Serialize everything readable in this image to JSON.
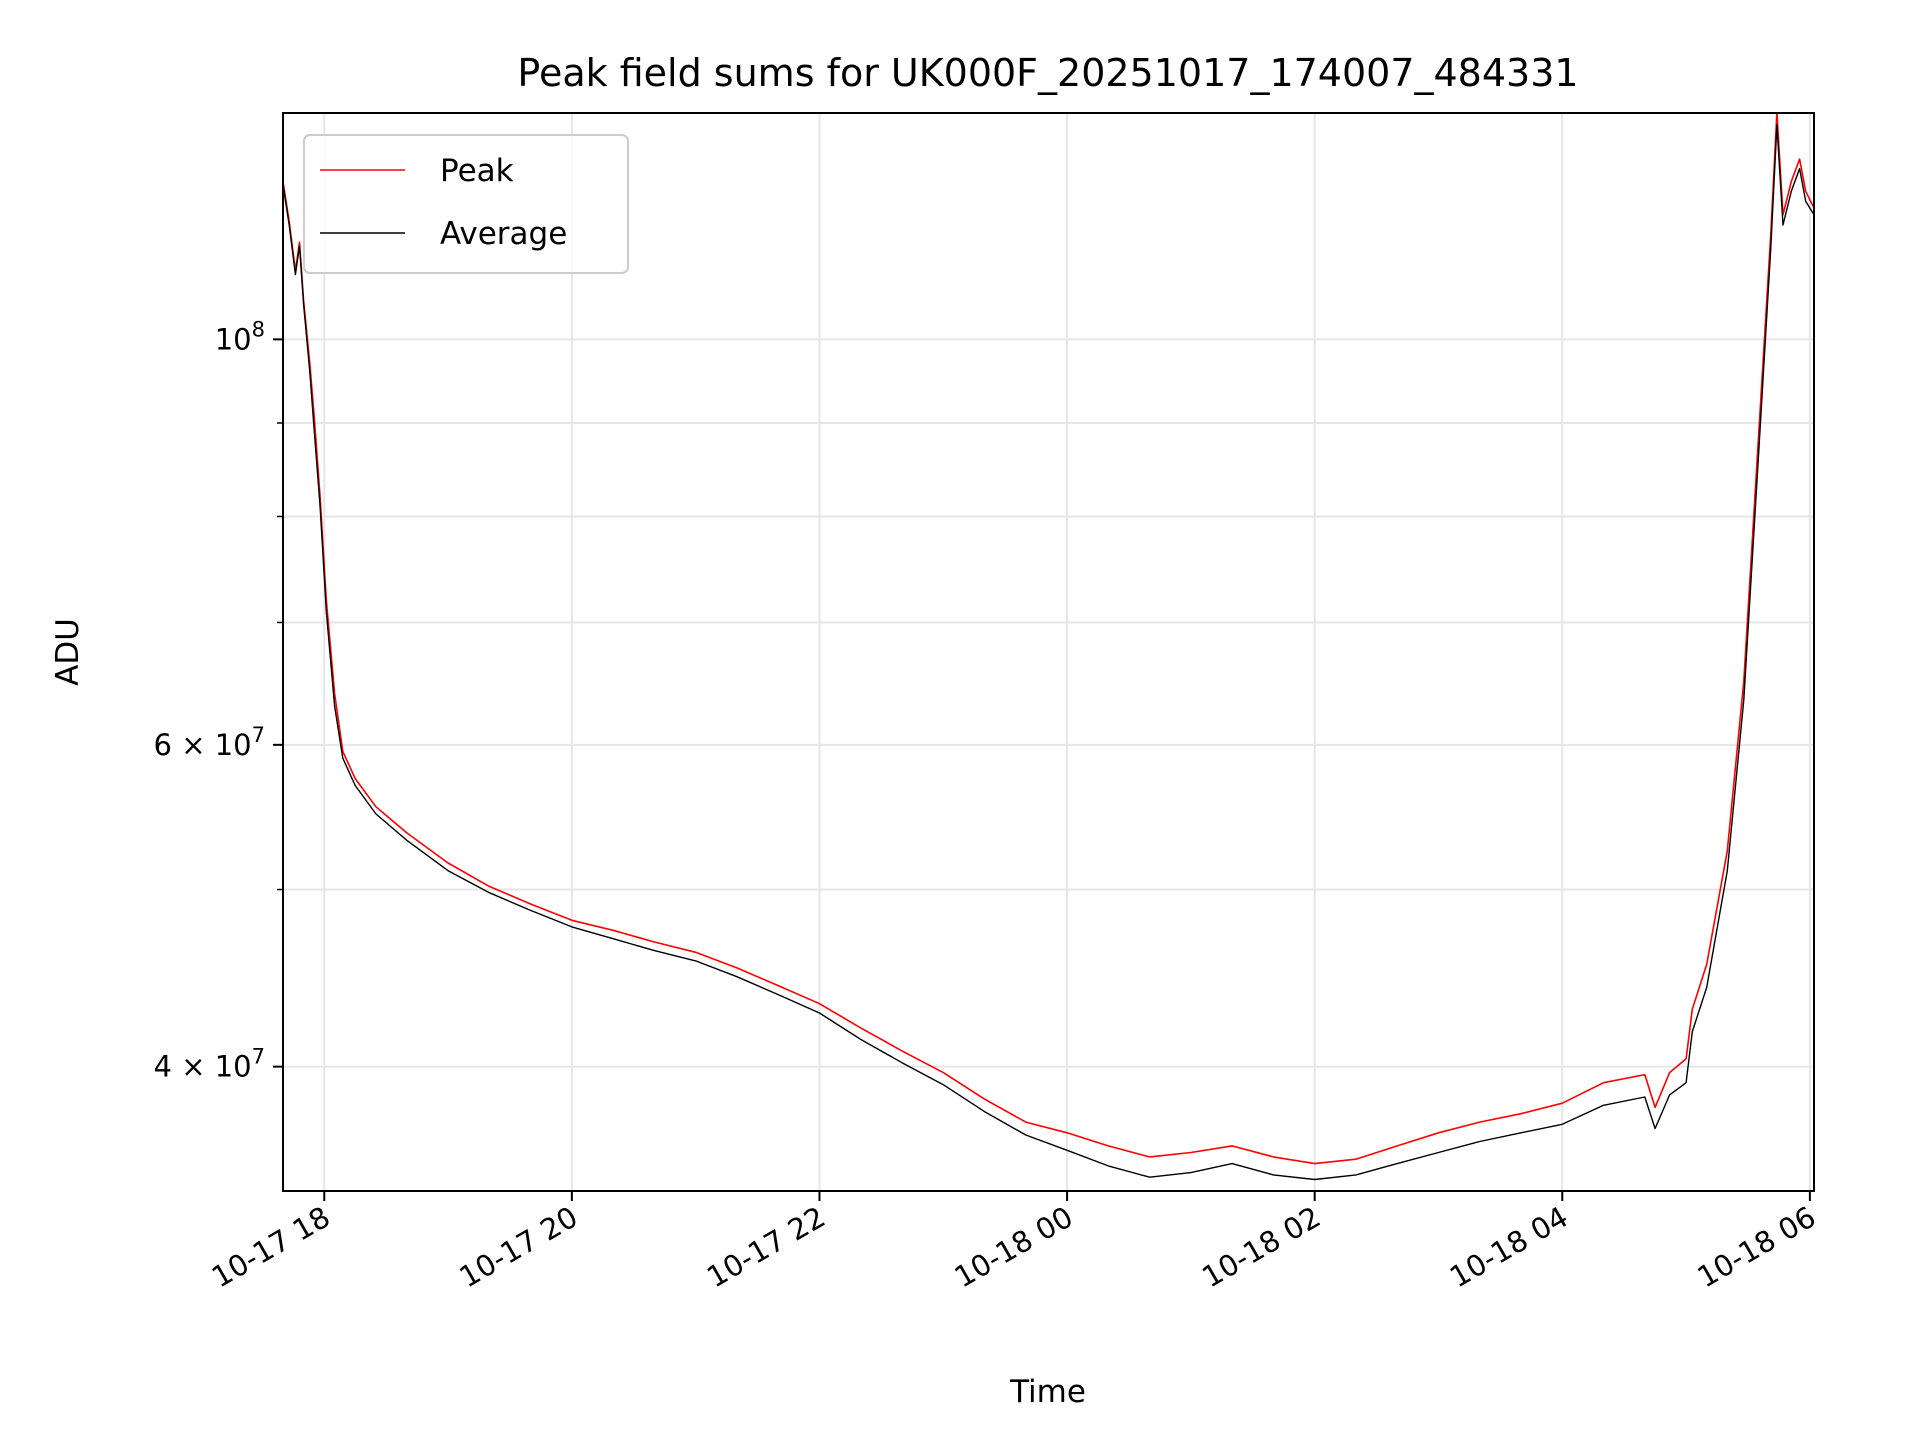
{
  "chart_data": {
    "type": "line",
    "title": "Peak field sums for UK000F_20251017_174007_484331",
    "xlabel": "Time",
    "ylabel": "ADU",
    "x_scale": "time",
    "y_scale": "log",
    "xlim": [
      "2025-10-17T17:40",
      "2025-10-18T06:02"
    ],
    "ylim": [
      34200000,
      133000000
    ],
    "grid": true,
    "legend": {
      "placement": "top-left"
    },
    "x_ticks": [
      {
        "t": "2025-10-17T18:00",
        "label": "10-17 18"
      },
      {
        "t": "2025-10-17T20:00",
        "label": "10-17 20"
      },
      {
        "t": "2025-10-17T22:00",
        "label": "10-17 22"
      },
      {
        "t": "2025-10-18T00:00",
        "label": "10-18 00"
      },
      {
        "t": "2025-10-18T02:00",
        "label": "10-18 02"
      },
      {
        "t": "2025-10-18T04:00",
        "label": "10-18 04"
      },
      {
        "t": "2025-10-18T06:00",
        "label": "10-18 06"
      }
    ],
    "y_ticks_major": [
      {
        "value": 100000000,
        "base": "10",
        "exp": "8",
        "mantissa": ""
      },
      {
        "value": 60000000,
        "base": "10",
        "exp": "7",
        "mantissa": "6"
      },
      {
        "value": 40000000,
        "base": "10",
        "exp": "7",
        "mantissa": "4"
      }
    ],
    "y_ticks_minor": [
      90000000,
      80000000,
      70000000,
      50000000
    ],
    "series": [
      {
        "name": "Peak",
        "color": "#ff0000",
        "points": [
          [
            "2025-10-17T17:40",
            122000000
          ],
          [
            "2025-10-17T17:43",
            116000000
          ],
          [
            "2025-10-17T17:46",
            109000000
          ],
          [
            "2025-10-17T17:48",
            113000000
          ],
          [
            "2025-10-17T17:50",
            105000000
          ],
          [
            "2025-10-17T17:53",
            97000000
          ],
          [
            "2025-10-17T17:55",
            91000000
          ],
          [
            "2025-10-17T17:58",
            82000000
          ],
          [
            "2025-10-17T18:01",
            72000000
          ],
          [
            "2025-10-17T18:05",
            64000000
          ],
          [
            "2025-10-17T18:09",
            59500000
          ],
          [
            "2025-10-17T18:15",
            57500000
          ],
          [
            "2025-10-17T18:25",
            55500000
          ],
          [
            "2025-10-17T18:40",
            53700000
          ],
          [
            "2025-10-17T19:00",
            51700000
          ],
          [
            "2025-10-17T19:20",
            50200000
          ],
          [
            "2025-10-17T19:40",
            49100000
          ],
          [
            "2025-10-17T20:00",
            48100000
          ],
          [
            "2025-10-17T20:20",
            47500000
          ],
          [
            "2025-10-17T20:40",
            46800000
          ],
          [
            "2025-10-17T21:00",
            46200000
          ],
          [
            "2025-10-17T21:20",
            45300000
          ],
          [
            "2025-10-17T21:40",
            44300000
          ],
          [
            "2025-10-17T22:00",
            43300000
          ],
          [
            "2025-10-17T22:20",
            42000000
          ],
          [
            "2025-10-17T22:40",
            40800000
          ],
          [
            "2025-10-17T23:00",
            39700000
          ],
          [
            "2025-10-17T23:20",
            38400000
          ],
          [
            "2025-10-17T23:40",
            37300000
          ],
          [
            "2025-10-18T00:00",
            36800000
          ],
          [
            "2025-10-18T00:20",
            36200000
          ],
          [
            "2025-10-18T00:40",
            35700000
          ],
          [
            "2025-10-18T01:00",
            35900000
          ],
          [
            "2025-10-18T01:20",
            36200000
          ],
          [
            "2025-10-18T01:40",
            35700000
          ],
          [
            "2025-10-18T02:00",
            35400000
          ],
          [
            "2025-10-18T02:20",
            35600000
          ],
          [
            "2025-10-18T02:40",
            36200000
          ],
          [
            "2025-10-18T03:00",
            36800000
          ],
          [
            "2025-10-18T03:20",
            37300000
          ],
          [
            "2025-10-18T03:40",
            37700000
          ],
          [
            "2025-10-18T04:00",
            38200000
          ],
          [
            "2025-10-18T04:20",
            39200000
          ],
          [
            "2025-10-18T04:40",
            39600000
          ],
          [
            "2025-10-18T04:45",
            38000000
          ],
          [
            "2025-10-18T04:52",
            39700000
          ],
          [
            "2025-10-18T05:00",
            40400000
          ],
          [
            "2025-10-18T05:03",
            43000000
          ],
          [
            "2025-10-18T05:10",
            45500000
          ],
          [
            "2025-10-18T05:20",
            52500000
          ],
          [
            "2025-10-18T05:28",
            65000000
          ],
          [
            "2025-10-18T05:35",
            88000000
          ],
          [
            "2025-10-18T05:41",
            114000000
          ],
          [
            "2025-10-18T05:44",
            133000000
          ],
          [
            "2025-10-18T05:47",
            117000000
          ],
          [
            "2025-10-18T05:51",
            122000000
          ],
          [
            "2025-10-18T05:55",
            125500000
          ],
          [
            "2025-10-18T05:58",
            120500000
          ],
          [
            "2025-10-18T06:02",
            118000000
          ]
        ]
      },
      {
        "name": "Average",
        "color": "#000000",
        "points": [
          [
            "2025-10-17T17:40",
            121500000
          ],
          [
            "2025-10-17T17:43",
            115500000
          ],
          [
            "2025-10-17T17:46",
            108500000
          ],
          [
            "2025-10-17T17:48",
            112500000
          ],
          [
            "2025-10-17T17:50",
            104500000
          ],
          [
            "2025-10-17T17:53",
            96000000
          ],
          [
            "2025-10-17T17:55",
            89500000
          ],
          [
            "2025-10-17T17:58",
            81000000
          ],
          [
            "2025-10-17T18:01",
            71000000
          ],
          [
            "2025-10-17T18:05",
            63000000
          ],
          [
            "2025-10-17T18:09",
            59000000
          ],
          [
            "2025-10-17T18:15",
            57000000
          ],
          [
            "2025-10-17T18:25",
            55000000
          ],
          [
            "2025-10-17T18:40",
            53200000
          ],
          [
            "2025-10-17T19:00",
            51200000
          ],
          [
            "2025-10-17T19:20",
            49800000
          ],
          [
            "2025-10-17T19:40",
            48700000
          ],
          [
            "2025-10-17T20:00",
            47700000
          ],
          [
            "2025-10-17T20:20",
            47000000
          ],
          [
            "2025-10-17T20:40",
            46300000
          ],
          [
            "2025-10-17T21:00",
            45700000
          ],
          [
            "2025-10-17T21:20",
            44800000
          ],
          [
            "2025-10-17T21:40",
            43800000
          ],
          [
            "2025-10-17T22:00",
            42800000
          ],
          [
            "2025-10-17T22:20",
            41400000
          ],
          [
            "2025-10-17T22:40",
            40200000
          ],
          [
            "2025-10-17T23:00",
            39100000
          ],
          [
            "2025-10-17T23:20",
            37800000
          ],
          [
            "2025-10-17T23:40",
            36700000
          ],
          [
            "2025-10-18T00:00",
            36000000
          ],
          [
            "2025-10-18T00:20",
            35300000
          ],
          [
            "2025-10-18T00:40",
            34800000
          ],
          [
            "2025-10-18T01:00",
            35000000
          ],
          [
            "2025-10-18T01:20",
            35400000
          ],
          [
            "2025-10-18T01:40",
            34900000
          ],
          [
            "2025-10-18T02:00",
            34700000
          ],
          [
            "2025-10-18T02:20",
            34900000
          ],
          [
            "2025-10-18T02:40",
            35400000
          ],
          [
            "2025-10-18T03:00",
            35900000
          ],
          [
            "2025-10-18T03:20",
            36400000
          ],
          [
            "2025-10-18T03:40",
            36800000
          ],
          [
            "2025-10-18T04:00",
            37200000
          ],
          [
            "2025-10-18T04:20",
            38100000
          ],
          [
            "2025-10-18T04:40",
            38500000
          ],
          [
            "2025-10-18T04:45",
            37000000
          ],
          [
            "2025-10-18T04:52",
            38600000
          ],
          [
            "2025-10-18T05:00",
            39200000
          ],
          [
            "2025-10-18T05:03",
            41800000
          ],
          [
            "2025-10-18T05:10",
            44200000
          ],
          [
            "2025-10-18T05:20",
            51200000
          ],
          [
            "2025-10-18T05:28",
            63500000
          ],
          [
            "2025-10-18T05:35",
            86000000
          ],
          [
            "2025-10-18T05:41",
            112000000
          ],
          [
            "2025-10-18T05:44",
            131000000
          ],
          [
            "2025-10-18T05:47",
            115500000
          ],
          [
            "2025-10-18T05:51",
            120500000
          ],
          [
            "2025-10-18T05:55",
            124000000
          ],
          [
            "2025-10-18T05:58",
            119000000
          ],
          [
            "2025-10-18T06:02",
            117000000
          ]
        ]
      }
    ]
  }
}
